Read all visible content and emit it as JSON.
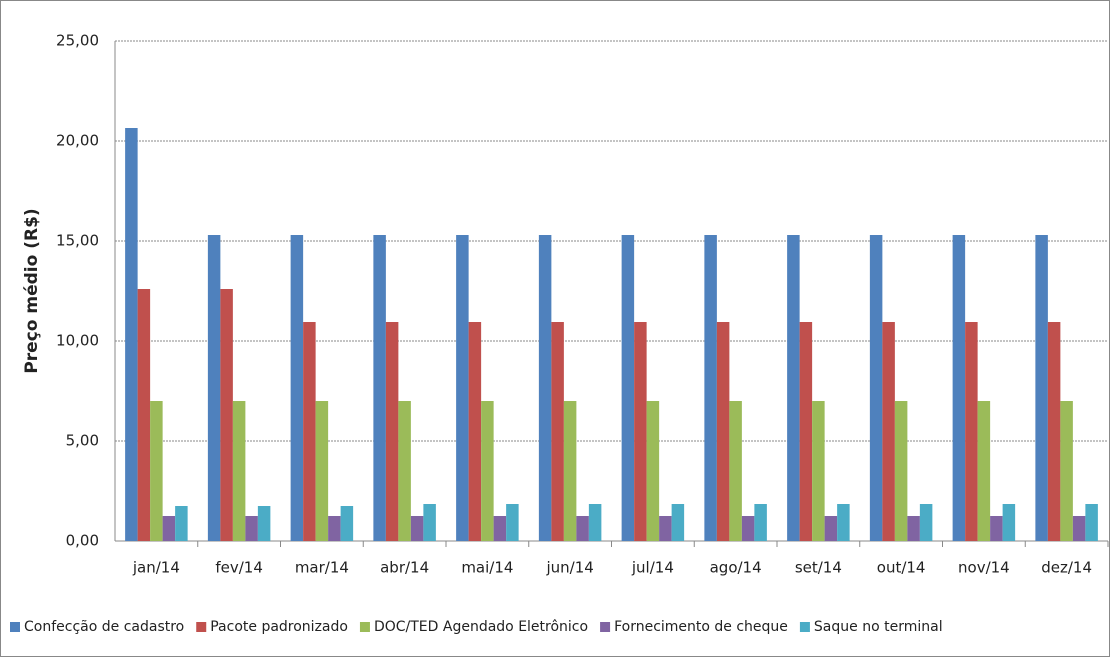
{
  "chart_data": {
    "type": "bar",
    "y_label": "Preço médio (R$)",
    "categories": [
      "jan/14",
      "fev/14",
      "mar/14",
      "abr/14",
      "mai/14",
      "jun/14",
      "jul/14",
      "ago/14",
      "set/14",
      "out/14",
      "nov/14",
      "dez/14"
    ],
    "series": [
      {
        "name": "Confecção de cadastro",
        "color": "#4f81bd",
        "values": [
          20.65,
          15.3,
          15.3,
          15.3,
          15.3,
          15.3,
          15.3,
          15.3,
          15.3,
          15.3,
          15.3,
          15.3
        ]
      },
      {
        "name": "Pacote padronizado",
        "color": "#c0504d",
        "values": [
          12.6,
          12.6,
          10.95,
          10.95,
          10.95,
          10.95,
          10.95,
          10.95,
          10.95,
          10.95,
          10.95,
          10.95
        ]
      },
      {
        "name": "DOC/TED Agendado Eletrônico",
        "color": "#9bbb59",
        "values": [
          7.0,
          7.0,
          7.0,
          7.0,
          7.0,
          7.0,
          7.0,
          7.0,
          7.0,
          7.0,
          7.0,
          7.0
        ]
      },
      {
        "name": "Fornecimento de cheque",
        "color": "#8064a2",
        "values": [
          1.25,
          1.25,
          1.25,
          1.25,
          1.25,
          1.25,
          1.25,
          1.25,
          1.25,
          1.25,
          1.25,
          1.25
        ]
      },
      {
        "name": "Saque no terminal",
        "color": "#4bacc6",
        "values": [
          1.75,
          1.75,
          1.75,
          1.85,
          1.85,
          1.85,
          1.85,
          1.85,
          1.85,
          1.85,
          1.85,
          1.85
        ]
      }
    ],
    "ylim": [
      0,
      25
    ],
    "yticks": [
      {
        "value": 0,
        "label": "0,00"
      },
      {
        "value": 5,
        "label": "5,00"
      },
      {
        "value": 10,
        "label": "10,00"
      },
      {
        "value": 15,
        "label": "15,00"
      },
      {
        "value": 20,
        "label": "20,00"
      },
      {
        "value": 25,
        "label": "25,00"
      }
    ],
    "grid": true,
    "legend": "bottom"
  }
}
